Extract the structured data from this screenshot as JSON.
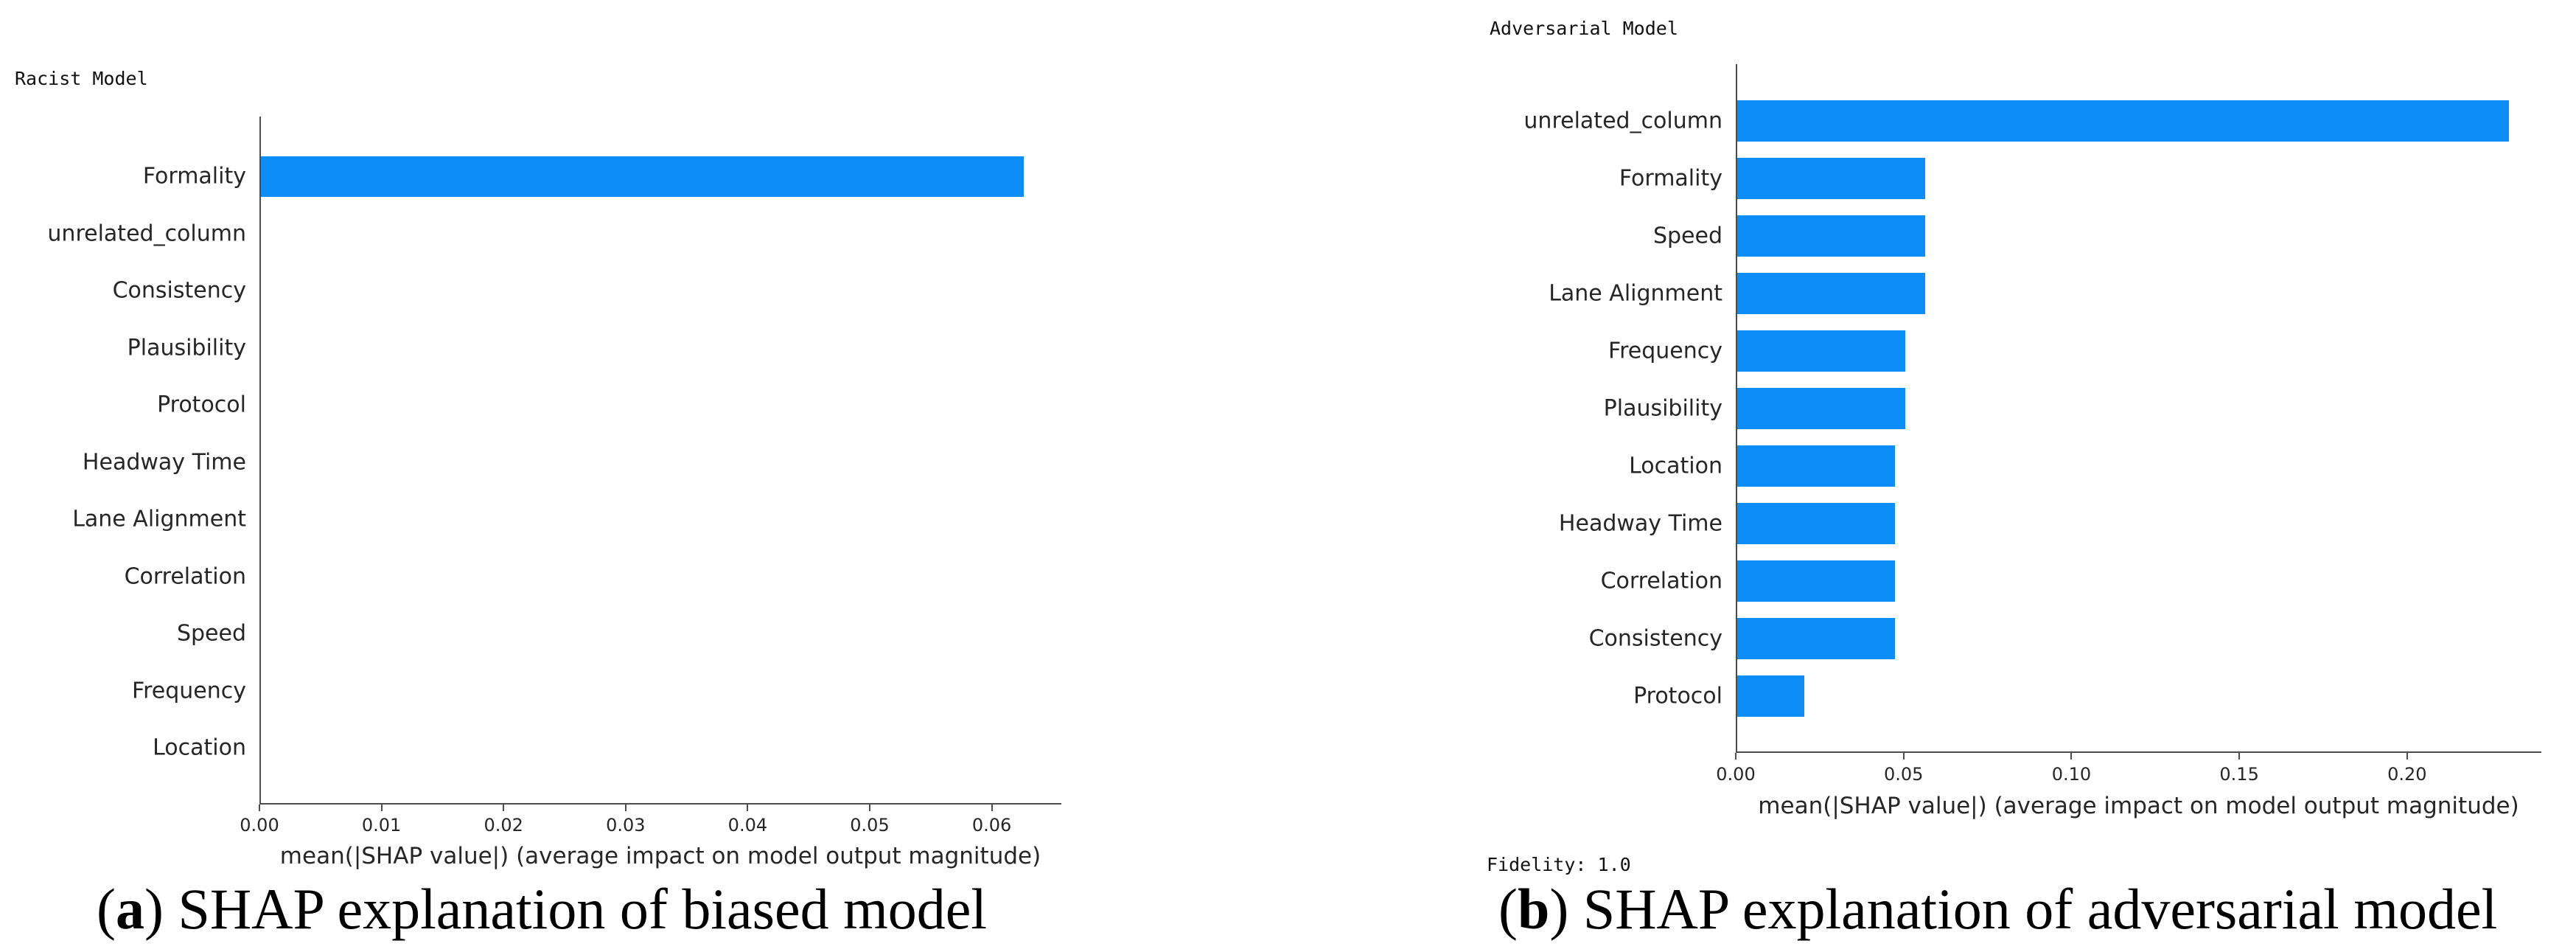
{
  "page": {
    "background": "#ffffff"
  },
  "chart_data": [
    {
      "type": "bar",
      "orientation": "horizontal",
      "title": "Racist Model",
      "categories": [
        "Formality",
        "unrelated_column",
        "Consistency",
        "Plausibility",
        "Protocol",
        "Headway Time",
        "Lane Alignment",
        "Correlation",
        "Speed",
        "Frequency",
        "Location"
      ],
      "values": [
        0.0625,
        0,
        0,
        0,
        0,
        0,
        0,
        0,
        0,
        0,
        0
      ],
      "xlabel": "mean(|SHAP value|) (average impact on model output magnitude)",
      "xticks": [
        0.0,
        0.01,
        0.02,
        0.03,
        0.04,
        0.05,
        0.06
      ],
      "xtick_labels": [
        "0.00",
        "0.01",
        "0.02",
        "0.03",
        "0.04",
        "0.05",
        "0.06"
      ],
      "xlim": [
        0,
        0.0657
      ],
      "bar_color": "#0d8df7",
      "axis_color": "#4d4d4d",
      "grid": false,
      "legend": null,
      "annotation": ""
    },
    {
      "type": "bar",
      "orientation": "horizontal",
      "title": "Adversarial Model",
      "categories": [
        "unrelated_column",
        "Formality",
        "Speed",
        "Lane Alignment",
        "Frequency",
        "Plausibility",
        "Location",
        "Headway Time",
        "Correlation",
        "Consistency",
        "Protocol"
      ],
      "values": [
        0.23,
        0.056,
        0.056,
        0.056,
        0.05,
        0.05,
        0.047,
        0.047,
        0.047,
        0.047,
        0.02
      ],
      "xlabel": "mean(|SHAP value|) (average impact on model output magnitude)",
      "xticks": [
        0.0,
        0.05,
        0.1,
        0.15,
        0.2
      ],
      "xtick_labels": [
        "0.00",
        "0.05",
        "0.10",
        "0.15",
        "0.20"
      ],
      "xlim": [
        0,
        0.24
      ],
      "bar_color": "#0d8df7",
      "axis_color": "#4d4d4d",
      "grid": false,
      "legend": null,
      "annotation": "Fidelity: 1.0"
    }
  ],
  "captions": [
    {
      "prefix": "(",
      "letter": "a",
      "suffix": ") SHAP explanation of biased model"
    },
    {
      "prefix": "(",
      "letter": "b",
      "suffix": ") SHAP explanation of adversarial model"
    }
  ]
}
